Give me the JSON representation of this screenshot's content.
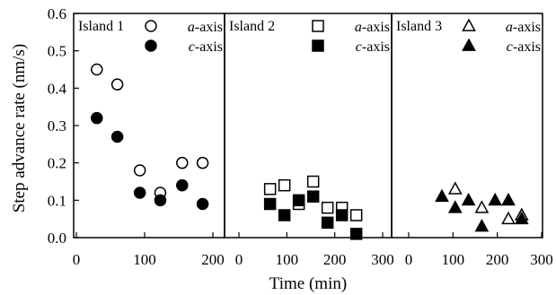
{
  "chart_data": {
    "type": "scatter",
    "ylabel": "Step advance rate (nm/s)",
    "xlabel": "Time (min)",
    "ylim": [
      0,
      0.6
    ],
    "yticks": [
      "0.0",
      "0.1",
      "0.2",
      "0.3",
      "0.4",
      "0.5",
      "0.6"
    ],
    "panels": [
      {
        "title": "Island 1",
        "xlim": [
          0,
          200
        ],
        "xticks": [
          "0",
          "100",
          "200"
        ],
        "marker": "circle",
        "series": [
          {
            "name_italic": "a",
            "name_rest": "-axis",
            "filled": false,
            "x": [
              30,
              60,
              93,
              123,
              155,
              185
            ],
            "y": [
              0.45,
              0.41,
              0.18,
              0.12,
              0.2,
              0.2
            ]
          },
          {
            "name_italic": "c",
            "name_rest": "-axis",
            "filled": true,
            "x": [
              30,
              60,
              93,
              123,
              155,
              185
            ],
            "y": [
              0.32,
              0.27,
              0.12,
              0.1,
              0.14,
              0.09
            ]
          }
        ]
      },
      {
        "title": "Island 2",
        "xlim": [
          0,
          300
        ],
        "xticks": [
          "0",
          "100",
          "200",
          "300"
        ],
        "marker": "square",
        "series": [
          {
            "name_italic": "a",
            "name_rest": "-axis",
            "filled": false,
            "x": [
              65,
              95,
              125,
              155,
              185,
              215,
              245
            ],
            "y": [
              0.13,
              0.14,
              0.09,
              0.15,
              0.08,
              0.08,
              0.06
            ]
          },
          {
            "name_italic": "c",
            "name_rest": "-axis",
            "filled": true,
            "x": [
              65,
              95,
              125,
              155,
              185,
              215,
              245
            ],
            "y": [
              0.09,
              0.06,
              0.1,
              0.11,
              0.04,
              0.06,
              0.01
            ]
          }
        ]
      },
      {
        "title": "Island 3",
        "xlim": [
          0,
          300
        ],
        "xticks": [
          "0",
          "100",
          "200",
          "300"
        ],
        "marker": "triangle",
        "series": [
          {
            "name_italic": "a",
            "name_rest": "-axis",
            "filled": false,
            "x": [
              105,
              165,
              225,
              255
            ],
            "y": [
              0.13,
              0.08,
              0.05,
              0.06
            ]
          },
          {
            "name_italic": "c",
            "name_rest": "-axis",
            "filled": true,
            "x": [
              75,
              105,
              135,
              165,
              195,
              225,
              255
            ],
            "y": [
              0.11,
              0.08,
              0.1,
              0.03,
              0.1,
              0.1,
              0.05
            ]
          }
        ]
      }
    ]
  }
}
